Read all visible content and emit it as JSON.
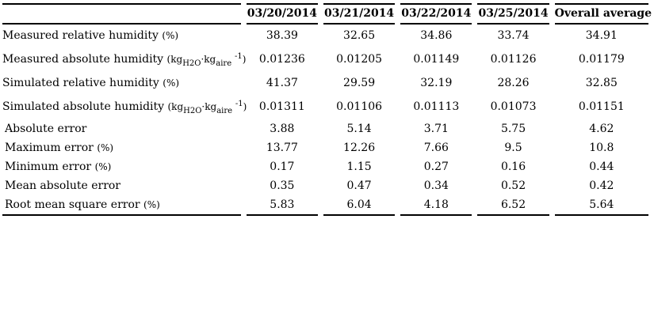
{
  "table": {
    "columns": [
      "",
      "03/20/2014",
      "03/21/2014",
      "03/22/2014",
      "03/25/2014",
      "Overall average"
    ],
    "rows": [
      {
        "label": "Measured relative humidity",
        "unit": "(%)",
        "values": [
          "38.39",
          "32.65",
          "34.86",
          "33.74",
          "34.91"
        ]
      },
      {
        "label": "Measured absolute humidity",
        "unit": "(kg_{H2O}·kg_{aire} ^{-1})",
        "values": [
          "0.01236",
          "0.01205",
          "0.01149",
          "0.01126",
          "0.01179"
        ]
      },
      {
        "label": "Simulated relative humidity",
        "unit": "(%)",
        "values": [
          "41.37",
          "29.59",
          "32.19",
          "28.26",
          "32.85"
        ]
      },
      {
        "label": "Simulated absolute humidity",
        "unit": "(kg_{H2O}·kg_{aire} ^{-1})",
        "values": [
          "0.01311",
          "0.01106",
          "0.01113",
          "0.01073",
          "0.01151"
        ]
      },
      {
        "label": "Absolute error",
        "unit": "",
        "values": [
          "3.88",
          "5.14",
          "3.71",
          "5.75",
          "4.62"
        ]
      },
      {
        "label": "Maximum error",
        "unit": "(%)",
        "values": [
          "13.77",
          "12.26",
          "7.66",
          "9.5",
          "10.8"
        ]
      },
      {
        "label": "Minimum error",
        "unit": "(%)",
        "values": [
          "0.17",
          "1.15",
          "0.27",
          "0.16",
          "0.44"
        ]
      },
      {
        "label": "Mean absolute error",
        "unit": "",
        "values": [
          "0.35",
          "0.47",
          "0.34",
          "0.52",
          "0.42"
        ]
      },
      {
        "label": "Root mean square error",
        "unit": "(%)",
        "values": [
          "5.83",
          "6.04",
          "4.18",
          "6.52",
          "5.64"
        ]
      }
    ]
  },
  "colors": {
    "text": "#000000",
    "rule": "#000000",
    "background": "#ffffff"
  }
}
